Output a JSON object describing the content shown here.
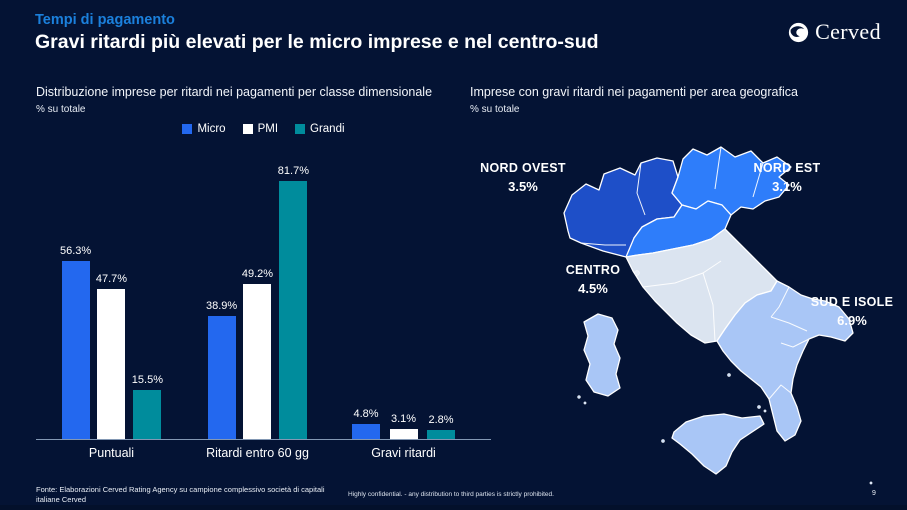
{
  "slide": {
    "eyebrow": "Tempi di pagamento",
    "title": "Gravi ritardi più elevati per le micro imprese e nel centro-sud",
    "logo_text": "Cerved",
    "page_number": "9",
    "footer": {
      "source_line1": "Fonte: Elaborazioni Cerved Rating Agency su campione complessivo società di capitali",
      "source_line2": "italiane Cerved",
      "confidential": "Highly confidential.  - any distribution to third parties is strictly prohibited."
    },
    "colors": {
      "background": "#041334",
      "accent_blue": "#1b80dc",
      "axis_line": "#8398b4"
    }
  },
  "chart_data": [
    {
      "type": "bar",
      "title": "Distribuzione imprese per ritardi nei pagamenti per classe dimensionale",
      "subtitle": "% su totale",
      "categories": [
        "Puntuali",
        "Ritardi entro 60 gg",
        "Gravi ritardi"
      ],
      "series": [
        {
          "name": "Micro",
          "color": "#2368ef",
          "values": [
            56.3,
            38.9,
            4.8
          ]
        },
        {
          "name": "PMI",
          "color": "#ffffff",
          "values": [
            47.7,
            49.2,
            3.1
          ]
        },
        {
          "name": "Grandi",
          "color": "#008c9c",
          "values": [
            15.5,
            81.7,
            2.8
          ]
        }
      ],
      "ylim": [
        0,
        90
      ],
      "grid": false,
      "legend_position": "top",
      "value_label_format": "#.#%"
    },
    {
      "type": "choropleth-map",
      "title": "Imprese con gravi ritardi nei pagamenti per area geografica",
      "subtitle": "% su totale",
      "map": "Italy macro-areas",
      "areas": [
        {
          "name": "NORD OVEST",
          "value": 3.5,
          "value_label": "3.5%",
          "color": "#1e4fc8"
        },
        {
          "name": "NORD EST",
          "value": 3.1,
          "value_label": "3.1%",
          "color": "#2e7dfa"
        },
        {
          "name": "CENTRO",
          "value": 4.5,
          "value_label": "4.5%",
          "color": "#dbe4f0"
        },
        {
          "name": "SUD E ISOLE",
          "value": 6.9,
          "value_label": "6.9%",
          "color": "#a9c6f6"
        }
      ]
    }
  ]
}
